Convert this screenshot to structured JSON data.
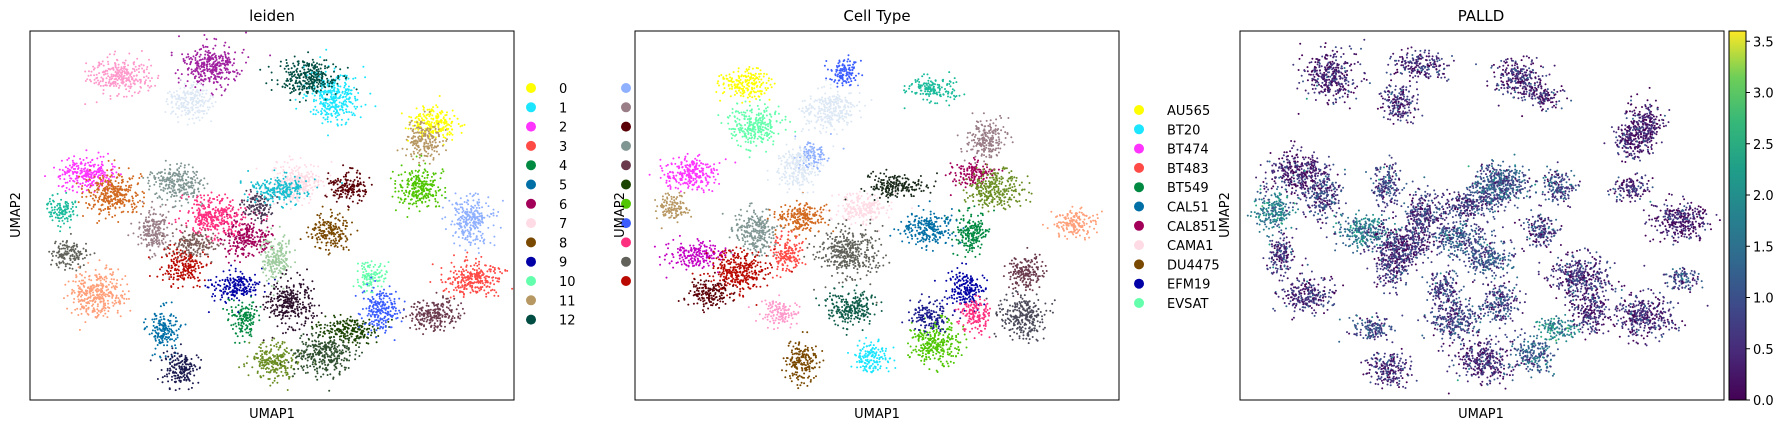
{
  "chart_data": [
    {
      "type": "scatter",
      "title": "leiden",
      "xlabel": "UMAP1",
      "ylabel": "UMAP2",
      "legend_placement": "right",
      "legend": [
        {
          "label": "0",
          "color": "#ffff00"
        },
        {
          "label": "1",
          "color": "#1ce6ff"
        },
        {
          "label": "2",
          "color": "#ff34ff"
        },
        {
          "label": "3",
          "color": "#ff4a46"
        },
        {
          "label": "4",
          "color": "#008941"
        },
        {
          "label": "5",
          "color": "#006fa6"
        },
        {
          "label": "6",
          "color": "#a30059"
        },
        {
          "label": "7",
          "color": "#ffdbe5"
        },
        {
          "label": "8",
          "color": "#7a4900"
        },
        {
          "label": "9",
          "color": "#0000a6"
        },
        {
          "label": "10",
          "color": "#63ffac"
        },
        {
          "label": "11",
          "color": "#b79762"
        },
        {
          "label": "12",
          "color": "#004d43"
        }
      ],
      "legend_overflow_colors": [
        "#8fb0ff",
        "#997d87",
        "#5a0007",
        "#809693",
        "#6a3a4c",
        "#1b4400",
        "#4fc601",
        "#3b5dff",
        "#ff2f80",
        "#61615a",
        "#ba0900"
      ],
      "clusters": [
        {
          "x": 5.1,
          "y": 8.5,
          "color": "#ffff00"
        },
        {
          "x": 2.1,
          "y": 9.5,
          "color": "#1ce6ff"
        },
        {
          "x": -5.3,
          "y": 6.6,
          "color": "#ff34ff"
        },
        {
          "x": 6.3,
          "y": 2.6,
          "color": "#ff4a46"
        },
        {
          "x": -0.6,
          "y": 1.1,
          "color": "#008941"
        },
        {
          "x": -3.0,
          "y": 0.7,
          "color": "#006fa6"
        },
        {
          "x": -0.5,
          "y": 4.2,
          "color": "#a30059"
        },
        {
          "x": 1.0,
          "y": 6.2,
          "color": "#ffdbe5"
        },
        {
          "x": 2.0,
          "y": 4.4,
          "color": "#7a4900"
        },
        {
          "x": -0.9,
          "y": 2.3,
          "color": "#0000a6"
        },
        {
          "x": 3.2,
          "y": 2.7,
          "color": "#63ffac"
        },
        {
          "x": 4.8,
          "y": 7.8,
          "color": "#b79762"
        },
        {
          "x": 1.3,
          "y": 10.2,
          "color": "#004d43"
        },
        {
          "x": 6.2,
          "y": 4.8,
          "color": "#8fb0ff"
        },
        {
          "x": -3.3,
          "y": 4.4,
          "color": "#997d87"
        },
        {
          "x": 2.5,
          "y": 6.1,
          "color": "#5a0007"
        },
        {
          "x": -2.6,
          "y": 6.2,
          "color": "#809693"
        },
        {
          "x": 5.1,
          "y": 1.2,
          "color": "#6a3a4c"
        },
        {
          "x": 2.5,
          "y": 0.7,
          "color": "#1b4400"
        },
        {
          "x": 4.7,
          "y": 6.0,
          "color": "#4fc601"
        },
        {
          "x": 3.5,
          "y": 1.4,
          "color": "#3b5dff"
        },
        {
          "x": -1.5,
          "y": 5.0,
          "color": "#ff2f80"
        },
        {
          "x": -5.8,
          "y": 3.5,
          "color": "#61615a"
        },
        {
          "x": -2.4,
          "y": 3.1,
          "color": "#ba0900"
        },
        {
          "x": -6.0,
          "y": 5.2,
          "color": "#1abc9c"
        },
        {
          "x": -4.3,
          "y": 10.3,
          "color": "#ff99cc"
        },
        {
          "x": -1.6,
          "y": 10.7,
          "color": "#a020a0"
        },
        {
          "x": -2.2,
          "y": 9.3,
          "color": "#dde8f5"
        },
        {
          "x": -5.0,
          "y": 2.0,
          "color": "#ffa07a"
        },
        {
          "x": -0.2,
          "y": 5.4,
          "color": "#4a3a55"
        },
        {
          "x": -4.5,
          "y": 5.8,
          "color": "#d2691e"
        },
        {
          "x": -2.1,
          "y": 3.9,
          "color": "#7a5c58"
        },
        {
          "x": 0.3,
          "y": -0.5,
          "color": "#6b8e23"
        },
        {
          "x": 1.8,
          "y": -0.3,
          "color": "#2f4f2f"
        },
        {
          "x": -2.5,
          "y": -0.8,
          "color": "#1a1a4e"
        },
        {
          "x": 0.4,
          "y": 3.4,
          "color": "#9fcc9f"
        },
        {
          "x": 0.8,
          "y": 1.7,
          "color": "#2b0f2b"
        },
        {
          "x": 0.5,
          "y": 6.0,
          "color": "#17becf"
        }
      ]
    },
    {
      "type": "scatter",
      "title": "Cell Type",
      "xlabel": "UMAP1",
      "ylabel": "UMAP2",
      "legend_placement": "right",
      "legend": [
        {
          "label": "AU565",
          "color": "#ffff00"
        },
        {
          "label": "BT20",
          "color": "#1ce6ff"
        },
        {
          "label": "BT474",
          "color": "#ff34ff"
        },
        {
          "label": "BT483",
          "color": "#ff4a46"
        },
        {
          "label": "BT549",
          "color": "#008941"
        },
        {
          "label": "CAL51",
          "color": "#006fa6"
        },
        {
          "label": "CAL851",
          "color": "#a30059"
        },
        {
          "label": "CAMA1",
          "color": "#ffdbe5"
        },
        {
          "label": "DU4475",
          "color": "#7a4900"
        },
        {
          "label": "EFM19",
          "color": "#0000a6"
        },
        {
          "label": "EVSAT",
          "color": "#63ffac"
        }
      ],
      "clusters": [
        {
          "x": -3.7,
          "y": 10.0,
          "color": "#ffff00"
        },
        {
          "x": 0.1,
          "y": -0.4,
          "color": "#1ce6ff"
        },
        {
          "x": -5.3,
          "y": 6.6,
          "color": "#ff34ff"
        },
        {
          "x": -2.5,
          "y": 3.6,
          "color": "#ff4a46"
        },
        {
          "x": 3.1,
          "y": 4.3,
          "color": "#008941"
        },
        {
          "x": 1.8,
          "y": 4.5,
          "color": "#006fa6"
        },
        {
          "x": 3.1,
          "y": 6.6,
          "color": "#a30059"
        },
        {
          "x": -0.2,
          "y": 5.3,
          "color": "#ffdbe5"
        },
        {
          "x": -2.0,
          "y": -0.6,
          "color": "#7a4900"
        },
        {
          "x": 2.9,
          "y": 2.2,
          "color": "#0000a6"
        },
        {
          "x": -3.4,
          "y": 8.4,
          "color": "#63ffac"
        },
        {
          "x": 1.9,
          "y": 9.8,
          "color": "#1abc9c"
        },
        {
          "x": -1.7,
          "y": 7.3,
          "color": "#8fb0ff"
        },
        {
          "x": 3.5,
          "y": 7.9,
          "color": "#997d87"
        },
        {
          "x": 3.8,
          "y": 6.0,
          "color": "#6b8e23"
        },
        {
          "x": 6.2,
          "y": 4.7,
          "color": "#ffa07a"
        },
        {
          "x": -5.9,
          "y": 5.3,
          "color": "#b79762"
        },
        {
          "x": -3.4,
          "y": 4.4,
          "color": "#809693"
        },
        {
          "x": -2.0,
          "y": 4.9,
          "color": "#d2691e"
        },
        {
          "x": -5.2,
          "y": 3.5,
          "color": "#c300c3"
        },
        {
          "x": -3.9,
          "y": 2.9,
          "color": "#ba0900"
        },
        {
          "x": -4.8,
          "y": 2.0,
          "color": "#5a0007"
        },
        {
          "x": -2.7,
          "y": 1.3,
          "color": "#ff99cc"
        },
        {
          "x": -0.5,
          "y": 1.5,
          "color": "#0f5c4a"
        },
        {
          "x": -0.6,
          "y": 3.6,
          "color": "#61615a"
        },
        {
          "x": 2.0,
          "y": 0.2,
          "color": "#4fc601"
        },
        {
          "x": 3.2,
          "y": 1.2,
          "color": "#ff2f80"
        },
        {
          "x": 4.7,
          "y": 2.8,
          "color": "#6a3a4c"
        },
        {
          "x": 4.6,
          "y": 1.2,
          "color": "#4a4a5a"
        },
        {
          "x": -0.7,
          "y": 10.4,
          "color": "#3b5dff"
        },
        {
          "x": 0.8,
          "y": 6.1,
          "color": "#1a2a1a"
        },
        {
          "x": 1.8,
          "y": 1.2,
          "color": "#1b1b8e"
        },
        {
          "x": -1.2,
          "y": 9.0,
          "color": "#dde8f5"
        },
        {
          "x": -2.1,
          "y": 6.8,
          "color": "#dde8f5"
        }
      ]
    },
    {
      "type": "scatter",
      "title": "PALLD",
      "xlabel": "UMAP1",
      "ylabel": "UMAP2",
      "colorbar": {
        "cmap": "viridis",
        "range": [
          0.0,
          3.6
        ],
        "ticks": [
          "0.0",
          "0.5",
          "1.0",
          "1.5",
          "2.0",
          "2.5",
          "3.0",
          "3.5"
        ]
      },
      "clusters": [
        {
          "x": 5.1,
          "y": 8.5,
          "value": 0.3
        },
        {
          "x": 2.1,
          "y": 9.5,
          "value": 0.4
        },
        {
          "x": -5.3,
          "y": 6.6,
          "value": 0.3
        },
        {
          "x": 6.3,
          "y": 2.6,
          "value": 0.9
        },
        {
          "x": -0.6,
          "y": 1.1,
          "value": 0.8
        },
        {
          "x": -3.0,
          "y": 0.7,
          "value": 0.9
        },
        {
          "x": -0.5,
          "y": 4.2,
          "value": 1.0
        },
        {
          "x": 1.0,
          "y": 6.2,
          "value": 1.1
        },
        {
          "x": 2.0,
          "y": 4.4,
          "value": 0.7
        },
        {
          "x": -0.9,
          "y": 2.3,
          "value": 0.7
        },
        {
          "x": 3.2,
          "y": 2.7,
          "value": 0.5
        },
        {
          "x": 4.8,
          "y": 7.8,
          "value": 0.4
        },
        {
          "x": 1.3,
          "y": 10.2,
          "value": 0.4
        },
        {
          "x": 6.2,
          "y": 4.8,
          "value": 0.3
        },
        {
          "x": -3.3,
          "y": 4.4,
          "value": 1.6
        },
        {
          "x": 2.5,
          "y": 6.1,
          "value": 0.9
        },
        {
          "x": -2.6,
          "y": 6.2,
          "value": 0.8
        },
        {
          "x": 5.1,
          "y": 1.2,
          "value": 0.4
        },
        {
          "x": 2.5,
          "y": 0.7,
          "value": 1.9
        },
        {
          "x": 4.7,
          "y": 6.0,
          "value": 0.5
        },
        {
          "x": 3.5,
          "y": 1.4,
          "value": 0.4
        },
        {
          "x": -1.5,
          "y": 5.0,
          "value": 0.6
        },
        {
          "x": -5.8,
          "y": 3.5,
          "value": 0.5
        },
        {
          "x": -2.4,
          "y": 3.1,
          "value": 0.6
        },
        {
          "x": -6.0,
          "y": 5.2,
          "value": 1.7
        },
        {
          "x": -4.3,
          "y": 10.3,
          "value": 0.4
        },
        {
          "x": -1.6,
          "y": 10.7,
          "value": 0.5
        },
        {
          "x": -2.2,
          "y": 9.3,
          "value": 0.5
        },
        {
          "x": -5.0,
          "y": 2.0,
          "value": 0.5
        },
        {
          "x": -0.2,
          "y": 5.4,
          "value": 0.6
        },
        {
          "x": -4.5,
          "y": 5.8,
          "value": 0.7
        },
        {
          "x": -2.1,
          "y": 3.9,
          "value": 0.5
        },
        {
          "x": 0.3,
          "y": -0.5,
          "value": 0.5
        },
        {
          "x": 1.8,
          "y": -0.3,
          "value": 1.2
        },
        {
          "x": -2.5,
          "y": -0.8,
          "value": 0.5
        },
        {
          "x": 0.4,
          "y": 3.4,
          "value": 1.0
        },
        {
          "x": 0.8,
          "y": 1.7,
          "value": 0.8
        },
        {
          "x": 0.5,
          "y": 6.0,
          "value": 1.0
        }
      ]
    }
  ]
}
